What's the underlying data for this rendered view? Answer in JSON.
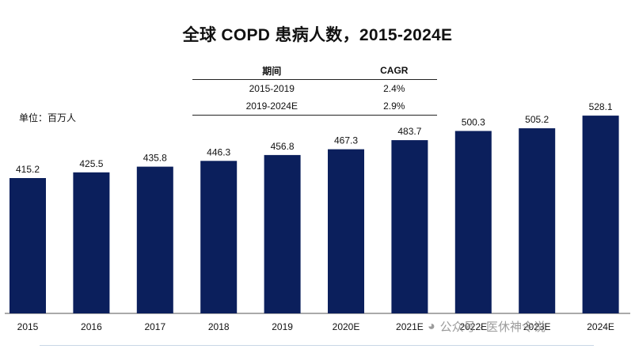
{
  "chart_data": {
    "type": "bar",
    "title": "全球 COPD 患病人数，2015-2024E",
    "unit_label": "单位：百万人",
    "categories": [
      "2015",
      "2016",
      "2017",
      "2018",
      "2019",
      "2020E",
      "2021E",
      "2022E",
      "2023E",
      "2024E"
    ],
    "values": [
      415.2,
      425.5,
      435.8,
      446.3,
      456.8,
      467.3,
      483.7,
      500.3,
      505.2,
      528.1
    ],
    "value_labels": [
      "415.2",
      "425.5",
      "435.8",
      "446.3",
      "456.8",
      "467.3",
      "483.7",
      "500.3",
      "505.2",
      "528.1"
    ],
    "bar_color": "#0b1f5c",
    "grid": false,
    "legend": "none"
  },
  "cagr_table": {
    "headers": [
      "期间",
      "CAGR"
    ],
    "rows": [
      {
        "period": "2015-2019",
        "cagr": "2.4%"
      },
      {
        "period": "2019-2024E",
        "cagr": "2.9%"
      }
    ]
  },
  "watermark": {
    "icon": "wechat-icon",
    "text": "公众号 · 医休神令说"
  }
}
